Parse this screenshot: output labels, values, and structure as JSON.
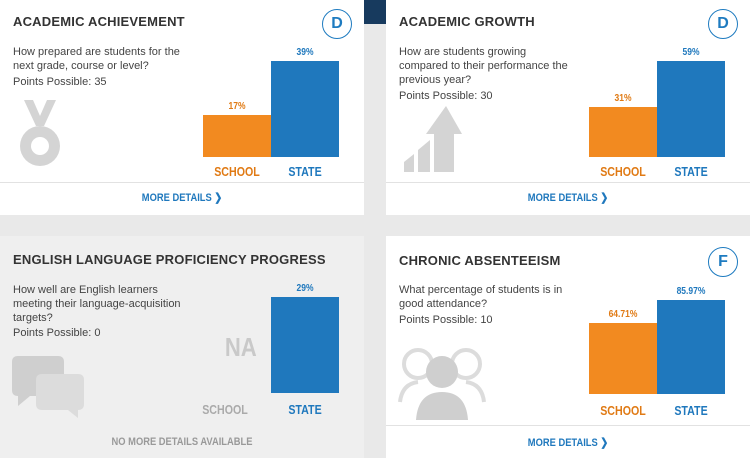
{
  "cards": [
    {
      "title": "ACADEMIC ACHIEVEMENT",
      "grade": "D",
      "question": "How prepared are students for the next grade, course or level?",
      "points": "Points Possible: 35",
      "icon": "medal-icon",
      "school_label": "SCHOOL",
      "state_label": "STATE",
      "school_value_text": "17%",
      "state_value_text": "39%",
      "more": "MORE DETAILS"
    },
    {
      "title": "ACADEMIC GROWTH",
      "grade": "D",
      "question": "How are students growing compared to their performance the previous year?",
      "points": "Points Possible: 30",
      "icon": "growth-arrow-icon",
      "school_label": "SCHOOL",
      "state_label": "STATE",
      "school_value_text": "31%",
      "state_value_text": "59%",
      "more": "MORE DETAILS"
    },
    {
      "title": "ENGLISH LANGUAGE PROFICIENCY PROGRESS",
      "question": "How well are English learners meeting their language-acquisition targets?",
      "points": "Points Possible: 0",
      "icon": "speech-bubbles-icon",
      "school_na": "NA",
      "school_label": "SCHOOL",
      "state_label": "STATE",
      "state_value_text": "29%",
      "more": "NO MORE DETAILS AVAILABLE"
    },
    {
      "title": "CHRONIC ABSENTEEISM",
      "grade": "F",
      "question": "What percentage of students is in good attendance?",
      "points": "Points Possible: 10",
      "icon": "people-group-icon",
      "school_label": "SCHOOL",
      "state_label": "STATE",
      "school_value_text": "64.71%",
      "state_value_text": "85.97%",
      "more": "MORE DETAILS"
    }
  ],
  "chart_data": [
    {
      "type": "bar",
      "title": "ACADEMIC ACHIEVEMENT",
      "categories": [
        "SCHOOL",
        "STATE"
      ],
      "values": [
        17,
        39
      ],
      "colors": [
        "#f28a20",
        "#1f78bd"
      ]
    },
    {
      "type": "bar",
      "title": "ACADEMIC GROWTH",
      "categories": [
        "SCHOOL",
        "STATE"
      ],
      "values": [
        31,
        59
      ],
      "colors": [
        "#f28a20",
        "#1f78bd"
      ]
    },
    {
      "type": "bar",
      "title": "ENGLISH LANGUAGE PROFICIENCY PROGRESS",
      "categories": [
        "SCHOOL",
        "STATE"
      ],
      "values": [
        null,
        29
      ],
      "colors": [
        "#f28a20",
        "#1f78bd"
      ]
    },
    {
      "type": "bar",
      "title": "CHRONIC ABSENTEEISM",
      "categories": [
        "SCHOOL",
        "STATE"
      ],
      "values": [
        64.71,
        85.97
      ],
      "colors": [
        "#f28a20",
        "#1f78bd"
      ]
    }
  ]
}
